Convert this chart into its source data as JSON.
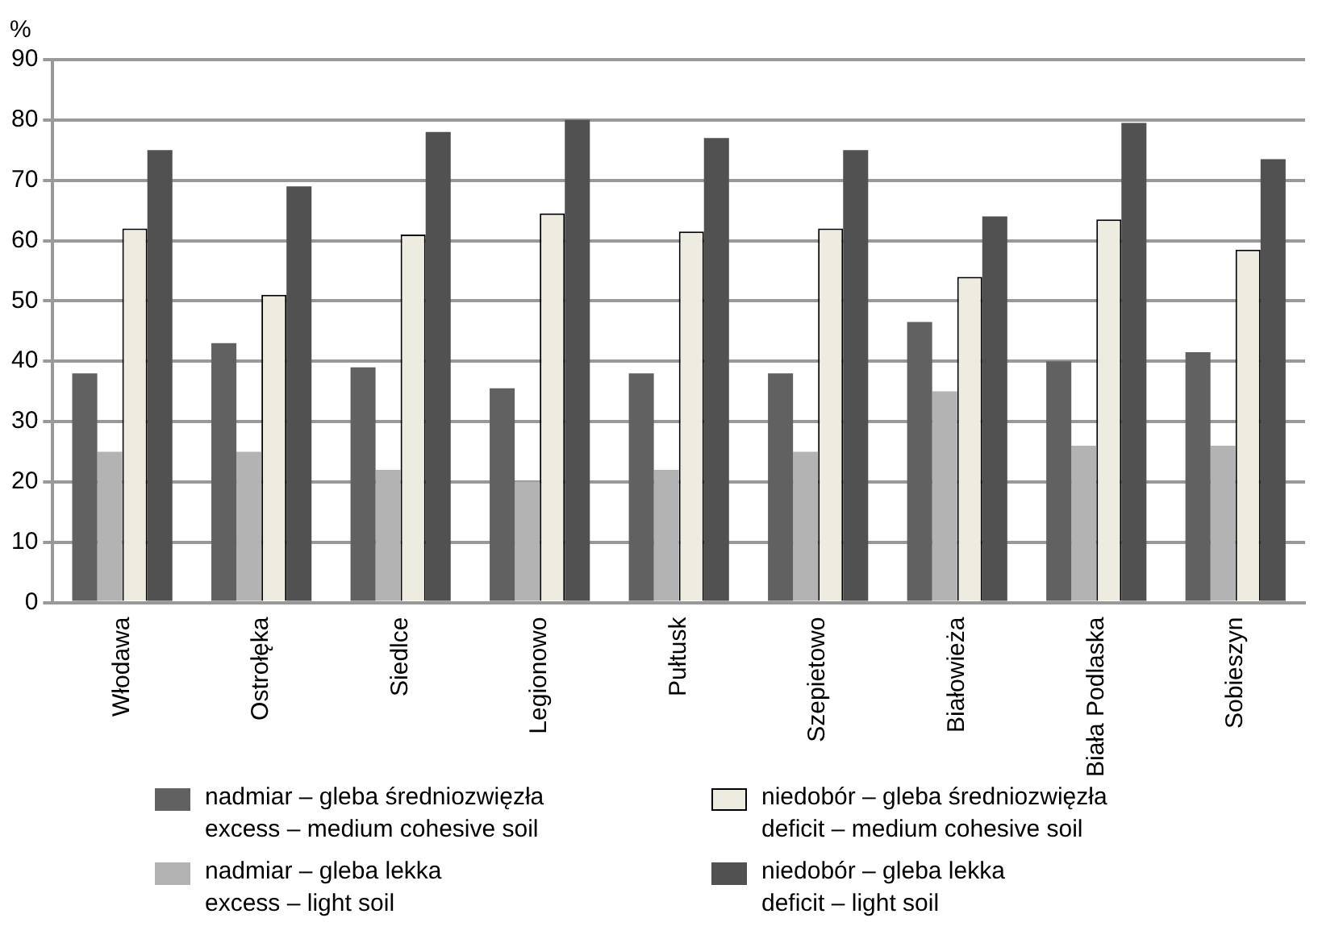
{
  "chart_data": {
    "type": "bar",
    "ylabel": "%",
    "categories": [
      "Włodawa",
      "Ostrołęka",
      "Siedlce",
      "Legionowo",
      "Pułtusk",
      "Szepietowo",
      "Białowieża",
      "Biała Podlaska",
      "Sobieszyn"
    ],
    "series": [
      {
        "name": "nadmiar – gleba średniozwięzła\nexcess – medium cohesive soil",
        "color": "#616161",
        "values": [
          38,
          43,
          39,
          35.5,
          38,
          38,
          46.5,
          40,
          41.5
        ]
      },
      {
        "name": "nadmiar – gleba lekka\nexcess – light soil",
        "color": "#b3b3b3",
        "values": [
          25,
          25,
          22,
          20,
          22,
          25,
          35,
          26,
          26
        ]
      },
      {
        "name": "niedobór – gleba średniozwięzła\ndeficit – medium cohesive soil",
        "color": "#eeebe0",
        "values": [
          62,
          51,
          61,
          64.5,
          61.5,
          62,
          54,
          63.5,
          58.5
        ]
      },
      {
        "name": "niedobór – gleba lekka\ndeficit – light soil",
        "color": "#515151",
        "values": [
          75,
          69,
          78,
          80,
          77,
          75,
          64,
          79.5,
          73.5
        ]
      }
    ],
    "ylim": [
      0,
      90
    ],
    "yticks": [
      0,
      10,
      20,
      30,
      40,
      50,
      60,
      70,
      80,
      90
    ],
    "grid": "y",
    "legend": "bottom"
  }
}
